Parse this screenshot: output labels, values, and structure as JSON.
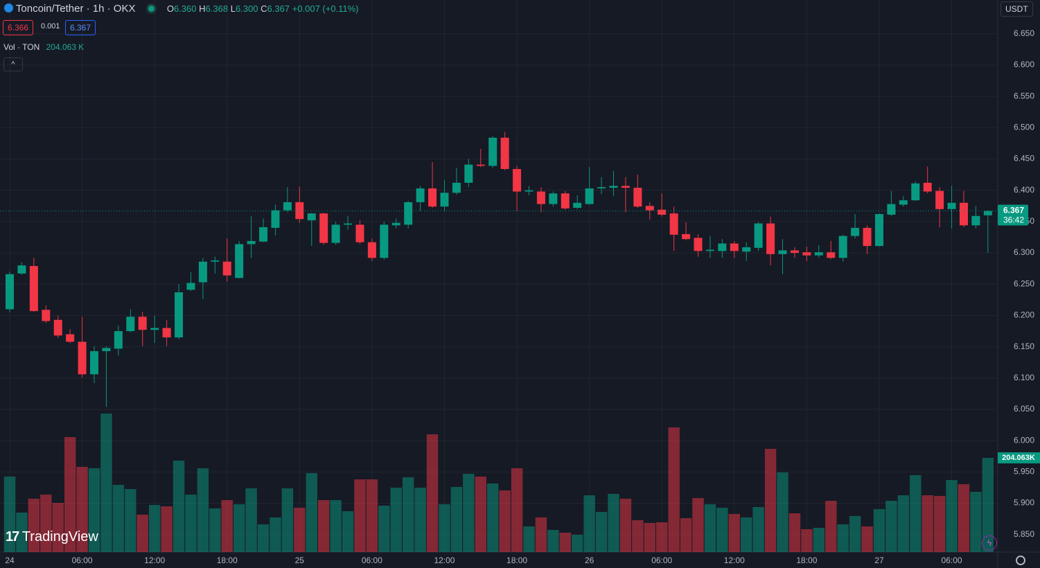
{
  "header": {
    "symbol": "Toncoin/Tether · 1h · OKX",
    "o_key": "O",
    "open": "6.360",
    "h_key": "H",
    "high": "6.368",
    "l_key": "L",
    "low": "6.300",
    "c_key": "C",
    "close": "6.367",
    "change": "+0.007 (+0.11%)",
    "bid": "6.366",
    "spread": "0.001",
    "ask": "6.367",
    "vol_title": "Vol · TON",
    "vol_value": "204.063 K",
    "currency": "USDT",
    "logo": "TradingView"
  },
  "chart_data": {
    "type": "candlestick",
    "categories": [
      "24",
      null,
      null,
      null,
      null,
      null,
      "06:00",
      null,
      null,
      null,
      null,
      null,
      "12:00",
      null,
      null,
      null,
      null,
      null,
      "18:00",
      null,
      null,
      null,
      null,
      null,
      "25",
      null,
      null,
      null,
      null,
      null,
      "06:00",
      null,
      null,
      null,
      null,
      null,
      "12:00",
      null,
      null,
      null,
      null,
      null,
      "18:00",
      null,
      null,
      null,
      null,
      null,
      "26",
      null,
      null,
      null,
      null,
      null,
      "06:00",
      null,
      null,
      null,
      null,
      null,
      "12:00",
      null,
      null,
      null,
      null,
      null,
      "18:00",
      null,
      null,
      null,
      null,
      null,
      "27",
      null,
      null,
      null,
      null,
      null,
      "06:00",
      null,
      null,
      null
    ],
    "open": [
      6.21,
      6.267,
      6.279,
      6.209,
      6.193,
      6.17,
      6.158,
      6.106,
      6.143,
      6.147,
      6.175,
      6.198,
      6.177,
      6.18,
      6.165,
      6.241,
      6.253,
      6.286,
      6.286,
      6.26,
      6.314,
      6.318,
      6.34,
      6.368,
      6.381,
      6.352,
      6.363,
      6.316,
      6.345,
      6.345,
      6.317,
      6.292,
      6.344,
      6.345,
      6.381,
      6.403,
      6.374,
      6.396,
      6.412,
      6.441,
      6.439,
      6.484,
      6.434,
      6.398,
      6.398,
      6.378,
      6.395,
      6.372,
      6.378,
      6.403,
      6.404,
      6.407,
      6.404,
      6.375,
      6.369,
      6.363,
      6.33,
      6.324,
      6.303,
      6.303,
      6.315,
      6.302,
      6.308,
      6.347,
      6.298,
      6.304,
      6.301,
      6.296,
      6.301,
      6.292,
      6.327,
      6.34,
      6.311,
      6.361,
      6.377,
      6.384,
      6.412,
      6.399,
      6.37,
      6.38,
      6.344,
      6.36
    ],
    "high": [
      6.27,
      6.285,
      6.292,
      6.216,
      6.2,
      6.178,
      6.198,
      6.151,
      6.151,
      6.184,
      6.21,
      6.206,
      6.2,
      6.193,
      6.25,
      6.269,
      6.292,
      6.294,
      6.323,
      6.319,
      6.359,
      6.355,
      6.377,
      6.405,
      6.406,
      6.364,
      6.364,
      6.35,
      6.359,
      6.352,
      6.323,
      6.35,
      6.355,
      6.383,
      6.407,
      6.445,
      6.416,
      6.436,
      6.45,
      6.466,
      6.486,
      6.493,
      6.439,
      6.407,
      6.405,
      6.398,
      6.399,
      6.392,
      6.437,
      6.421,
      6.431,
      6.421,
      6.425,
      6.381,
      6.395,
      6.374,
      6.349,
      6.33,
      6.327,
      6.322,
      6.319,
      6.317,
      6.349,
      6.358,
      6.322,
      6.309,
      6.31,
      6.312,
      6.319,
      6.329,
      6.362,
      6.344,
      6.363,
      6.399,
      6.391,
      6.414,
      6.438,
      6.405,
      6.407,
      6.399,
      6.375,
      6.368
    ],
    "low": [
      6.205,
      6.265,
      6.206,
      6.188,
      6.164,
      6.156,
      6.101,
      6.092,
      6.054,
      6.136,
      6.173,
      6.151,
      6.156,
      6.151,
      6.162,
      6.239,
      6.226,
      6.267,
      6.254,
      6.259,
      6.292,
      6.317,
      6.328,
      6.365,
      6.348,
      6.311,
      6.313,
      6.313,
      6.337,
      6.314,
      6.287,
      6.289,
      6.339,
      6.339,
      6.367,
      6.372,
      6.367,
      6.393,
      6.405,
      6.437,
      6.436,
      6.432,
      6.367,
      6.392,
      6.365,
      6.374,
      6.369,
      6.37,
      6.377,
      6.394,
      6.391,
      6.365,
      6.372,
      6.353,
      6.358,
      6.303,
      6.32,
      6.294,
      6.292,
      6.292,
      6.292,
      6.287,
      6.303,
      6.28,
      6.266,
      6.292,
      6.287,
      6.292,
      6.29,
      6.286,
      6.323,
      6.298,
      6.31,
      6.359,
      6.374,
      6.383,
      6.395,
      6.341,
      6.339,
      6.341,
      6.339,
      6.3
    ],
    "close": [
      6.266,
      6.28,
      6.207,
      6.191,
      6.168,
      6.158,
      6.106,
      6.143,
      6.148,
      6.175,
      6.198,
      6.177,
      6.18,
      6.165,
      6.237,
      6.252,
      6.286,
      6.288,
      6.264,
      6.314,
      6.319,
      6.341,
      6.368,
      6.381,
      6.354,
      6.363,
      6.316,
      6.345,
      6.347,
      6.317,
      6.292,
      6.345,
      6.348,
      6.381,
      6.403,
      6.374,
      6.396,
      6.412,
      6.441,
      6.439,
      6.484,
      6.434,
      6.398,
      6.4,
      6.378,
      6.395,
      6.371,
      6.38,
      6.403,
      6.405,
      6.407,
      6.404,
      6.374,
      6.368,
      6.361,
      6.329,
      6.322,
      6.303,
      6.305,
      6.315,
      6.303,
      6.309,
      6.347,
      6.298,
      6.304,
      6.3,
      6.296,
      6.301,
      6.292,
      6.327,
      6.34,
      6.311,
      6.362,
      6.378,
      6.384,
      6.411,
      6.398,
      6.37,
      6.38,
      6.344,
      6.359,
      6.367
    ],
    "volume": [
      163.5,
      85.5,
      115.5,
      124.5,
      106.5,
      249,
      184.5,
      181.5,
      300,
      145.5,
      136.5,
      81,
      102,
      99,
      198,
      124.5,
      181.5,
      94.5,
      112.5,
      103.5,
      138,
      60,
      75,
      138,
      96,
      171,
      112.5,
      112.5,
      88.5,
      157.5,
      157.5,
      100.5,
      139.5,
      162,
      139.5,
      255,
      103.5,
      141,
      169.5,
      163.5,
      148.5,
      133.5,
      181.5,
      55.5,
      75,
      48,
      42,
      37.5,
      123,
      87,
      126,
      115.5,
      69,
      63,
      64.5,
      270,
      73.5,
      117,
      103.5,
      96,
      82.5,
      75,
      97.5,
      223.5,
      172.5,
      84,
      49.5,
      52.5,
      111,
      60,
      78,
      55.5,
      93,
      111,
      123,
      166.5,
      123,
      121.5,
      156,
      147,
      130.5,
      204.063
    ],
    "volume_axis_label": "204.063K",
    "last_price": 6.367,
    "countdown": "36:42",
    "up_color": "#089981",
    "down_color": "#f23645",
    "ylim": [
      5.822,
      6.704
    ],
    "yticks": [
      {
        "value": 5.85,
        "label": "5.850"
      },
      {
        "value": 5.9,
        "label": "5.900"
      },
      {
        "value": 5.95,
        "label": "5.950"
      },
      {
        "value": 6.0,
        "label": "6.000"
      },
      {
        "value": 6.05,
        "label": "6.050"
      },
      {
        "value": 6.1,
        "label": "6.100"
      },
      {
        "value": 6.15,
        "label": "6.150"
      },
      {
        "value": 6.2,
        "label": "6.200"
      },
      {
        "value": 6.25,
        "label": "6.250"
      },
      {
        "value": 6.3,
        "label": "6.300"
      },
      {
        "value": 6.35,
        "label": "6.350"
      },
      {
        "value": 6.4,
        "label": "6.400"
      },
      {
        "value": 6.45,
        "label": "6.450"
      },
      {
        "value": 6.5,
        "label": "6.500"
      },
      {
        "value": 6.55,
        "label": "6.550"
      },
      {
        "value": 6.6,
        "label": "6.600"
      },
      {
        "value": 6.65,
        "label": "6.650"
      }
    ],
    "grid": true
  }
}
